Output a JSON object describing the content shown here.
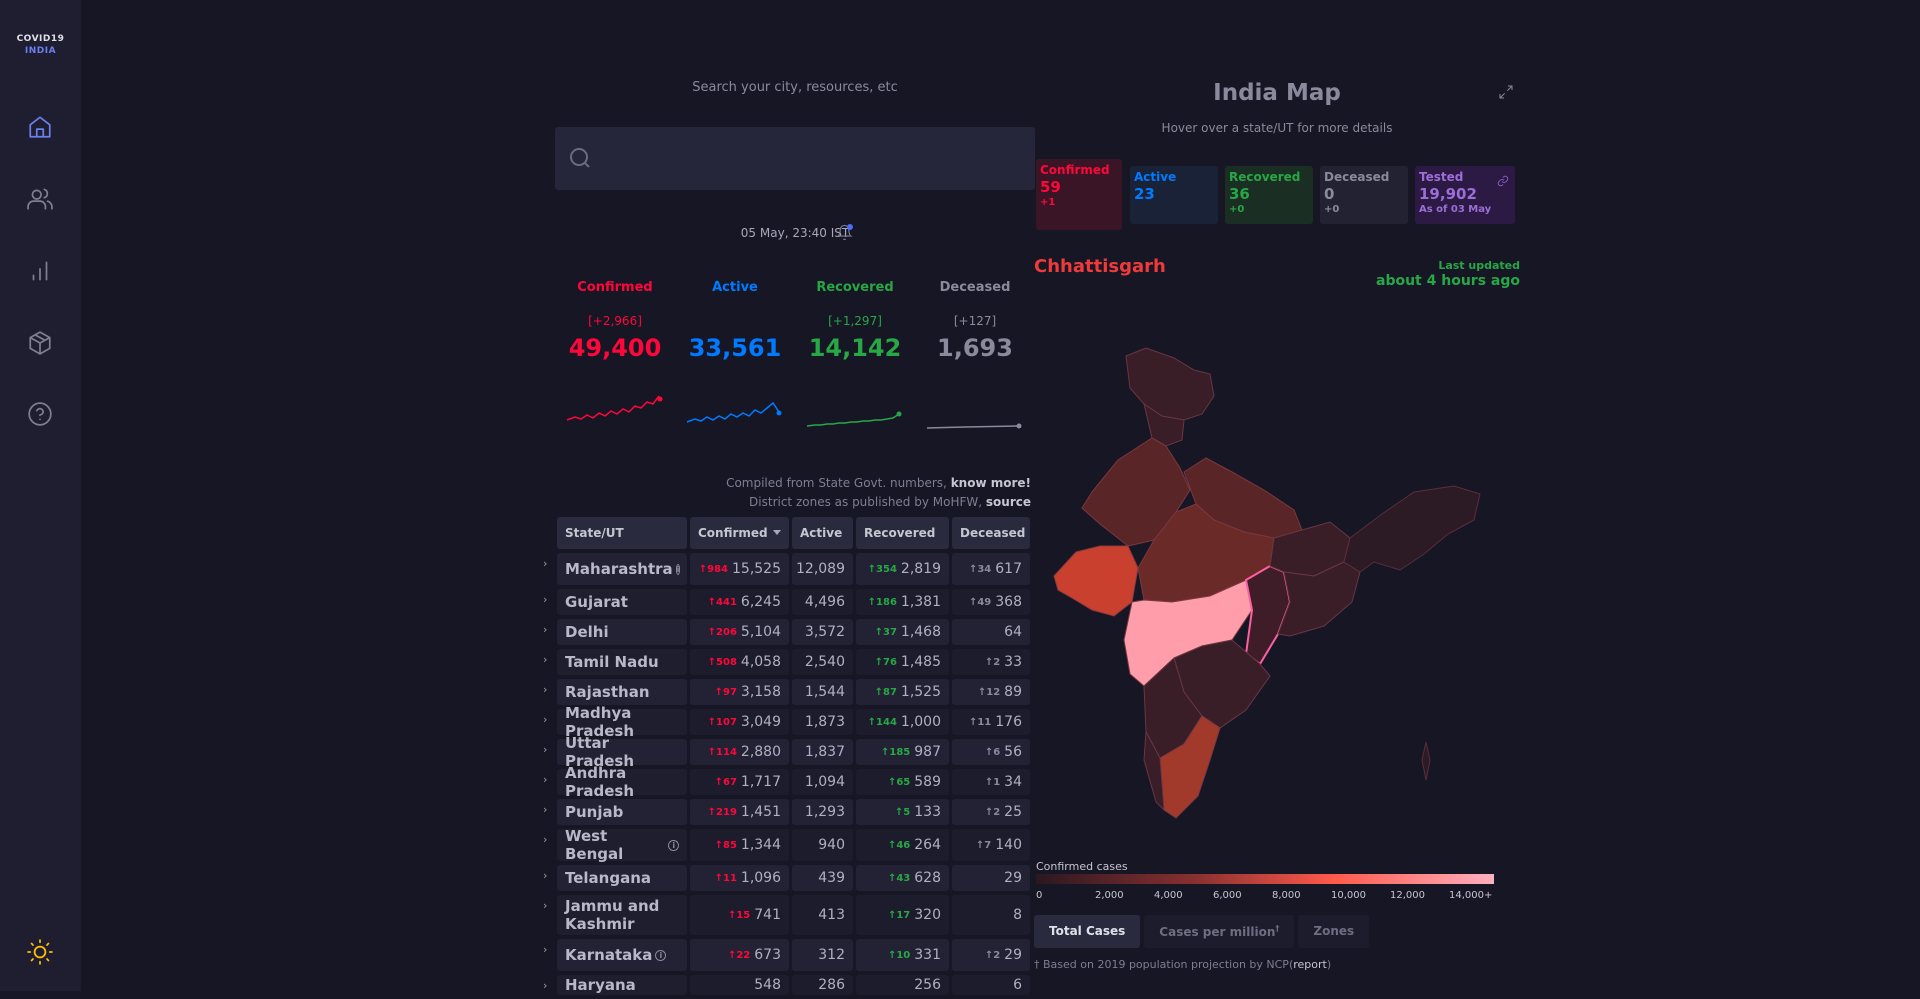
{
  "brand": {
    "line1": "COVID19",
    "line2": "INDIA"
  },
  "search": {
    "label": "Search your city, resources, etc",
    "placeholder": ""
  },
  "timestamp": "05 May, 23:40 IST",
  "levels": [
    {
      "label": "Confirmed",
      "delta": "[+2,966]",
      "value": "49,400",
      "color": "#ff073a"
    },
    {
      "label": "Active",
      "delta": "",
      "value": "33,561",
      "color": "#007bff"
    },
    {
      "label": "Recovered",
      "delta": "[+1,297]",
      "value": "14,142",
      "color": "#28a745"
    },
    {
      "label": "Deceased",
      "delta": "[+127]",
      "value": "1,693",
      "color": "#8a8a9c"
    }
  ],
  "notes": {
    "line1_text": "Compiled from State Govt. numbers, ",
    "line1_link": "know more!",
    "line2_text": "District zones as published by MoHFW, ",
    "line2_link": "source"
  },
  "table": {
    "headers": [
      "State/UT",
      "Confirmed",
      "Active",
      "Recovered",
      "Deceased"
    ],
    "rows": [
      {
        "state": "Maharashtra",
        "info": true,
        "c_delta": "984",
        "confirmed": "15,525",
        "active": "12,089",
        "r_delta": "354",
        "recovered": "2,819",
        "d_delta": "34",
        "deceased": "617"
      },
      {
        "state": "Gujarat",
        "info": false,
        "c_delta": "441",
        "confirmed": "6,245",
        "active": "4,496",
        "r_delta": "186",
        "recovered": "1,381",
        "d_delta": "49",
        "deceased": "368"
      },
      {
        "state": "Delhi",
        "info": false,
        "c_delta": "206",
        "confirmed": "5,104",
        "active": "3,572",
        "r_delta": "37",
        "recovered": "1,468",
        "d_delta": "",
        "deceased": "64"
      },
      {
        "state": "Tamil Nadu",
        "info": false,
        "c_delta": "508",
        "confirmed": "4,058",
        "active": "2,540",
        "r_delta": "76",
        "recovered": "1,485",
        "d_delta": "2",
        "deceased": "33"
      },
      {
        "state": "Rajasthan",
        "info": false,
        "c_delta": "97",
        "confirmed": "3,158",
        "active": "1,544",
        "r_delta": "87",
        "recovered": "1,525",
        "d_delta": "12",
        "deceased": "89"
      },
      {
        "state": "Madhya Pradesh",
        "info": false,
        "c_delta": "107",
        "confirmed": "3,049",
        "active": "1,873",
        "r_delta": "144",
        "recovered": "1,000",
        "d_delta": "11",
        "deceased": "176"
      },
      {
        "state": "Uttar Pradesh",
        "info": false,
        "c_delta": "114",
        "confirmed": "2,880",
        "active": "1,837",
        "r_delta": "185",
        "recovered": "987",
        "d_delta": "6",
        "deceased": "56"
      },
      {
        "state": "Andhra Pradesh",
        "info": false,
        "c_delta": "67",
        "confirmed": "1,717",
        "active": "1,094",
        "r_delta": "65",
        "recovered": "589",
        "d_delta": "1",
        "deceased": "34"
      },
      {
        "state": "Punjab",
        "info": false,
        "c_delta": "219",
        "confirmed": "1,451",
        "active": "1,293",
        "r_delta": "5",
        "recovered": "133",
        "d_delta": "2",
        "deceased": "25"
      },
      {
        "state": "West Bengal",
        "info": true,
        "c_delta": "85",
        "confirmed": "1,344",
        "active": "940",
        "r_delta": "46",
        "recovered": "264",
        "d_delta": "7",
        "deceased": "140"
      },
      {
        "state": "Telangana",
        "info": false,
        "c_delta": "11",
        "confirmed": "1,096",
        "active": "439",
        "r_delta": "43",
        "recovered": "628",
        "d_delta": "",
        "deceased": "29"
      },
      {
        "state": "Jammu and Kashmir",
        "info": false,
        "c_delta": "15",
        "confirmed": "741",
        "active": "413",
        "r_delta": "17",
        "recovered": "320",
        "d_delta": "",
        "deceased": "8"
      },
      {
        "state": "Karnataka",
        "info": true,
        "c_delta": "22",
        "confirmed": "673",
        "active": "312",
        "r_delta": "10",
        "recovered": "331",
        "d_delta": "2",
        "deceased": "29"
      },
      {
        "state": "Haryana",
        "info": false,
        "c_delta": "",
        "confirmed": "548",
        "active": "286",
        "r_delta": "",
        "recovered": "256",
        "d_delta": "",
        "deceased": "6"
      }
    ]
  },
  "map": {
    "title": "India Map",
    "subtitle": "Hover over a state/UT for more details",
    "stats": [
      {
        "label": "Confirmed",
        "value": "59",
        "delta": "+1",
        "fg": "#ff073a",
        "bg": "#3a1525"
      },
      {
        "label": "Active",
        "value": "23",
        "delta": "",
        "fg": "#007bff",
        "bg": "#1a2238"
      },
      {
        "label": "Recovered",
        "value": "36",
        "delta": "+0",
        "fg": "#28a745",
        "bg": "#1a2e24"
      },
      {
        "label": "Deceased",
        "value": "0",
        "delta": "+0",
        "fg": "#8a8a9c",
        "bg": "#222232"
      },
      {
        "label": "Tested",
        "value": "19,902",
        "delta": "As of 03 May",
        "fg": "#9c6ed8",
        "bg": "#2c1a44"
      }
    ],
    "state": "Chhattisgarh",
    "updated_label": "Last updated",
    "updated_value": "about 4 hours ago",
    "legend_title": "Confirmed cases",
    "legend_ticks": [
      "0",
      "2,000",
      "4,000",
      "6,000",
      "8,000",
      "10,000",
      "12,000",
      "14,000+"
    ],
    "tabs": [
      "Total Cases",
      "Cases per million",
      "Zones"
    ],
    "tab_sup": "†",
    "footnote_text": "† Based on 2019 population projection by NCP(",
    "footnote_link": "report",
    "footnote_end": ")"
  },
  "icons": [
    "home-icon",
    "users-icon",
    "bar-chart-icon",
    "package-icon",
    "help-circle-icon",
    "sun-icon",
    "search-icon",
    "bell-icon",
    "expand-icon",
    "link-icon",
    "chevron-right-icon",
    "info-icon"
  ]
}
